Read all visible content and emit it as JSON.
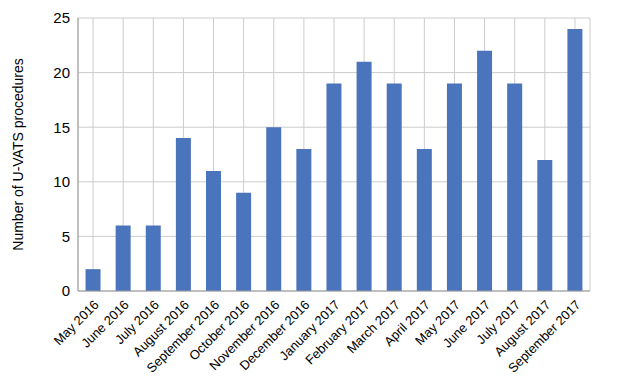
{
  "chart_data": {
    "type": "bar",
    "y_label": "Number of U-VATS procedures",
    "categories": [
      "May 2016",
      "June 2016",
      "July 2016",
      "August 2016",
      "September 2016",
      "October 2016",
      "November 2016",
      "December 2016",
      "January 2017",
      "February 2017",
      "March 2017",
      "April 2017",
      "May 2017",
      "June 2017",
      "July 2017",
      "August 2017",
      "September 2017"
    ],
    "values": [
      2,
      6,
      6,
      14,
      11,
      9,
      15,
      13,
      19,
      21,
      19,
      13,
      19,
      22,
      19,
      12,
      24
    ],
    "color": "#4a74bb",
    "ylim": [
      0,
      25
    ],
    "yticks": [
      0,
      5,
      10,
      15,
      20,
      25
    ],
    "grid": true
  }
}
